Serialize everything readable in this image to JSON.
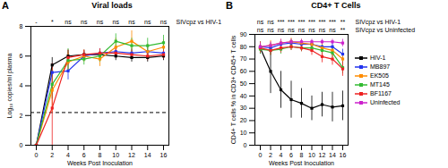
{
  "chart_data": [
    {
      "type": "line",
      "panel": "A",
      "title": "Viral loads",
      "x_label": "Weeks Post Inoculation",
      "y_label": "Log₁₀ copies/ml plasma",
      "x": [
        0,
        2,
        4,
        6,
        8,
        10,
        12,
        14,
        16
      ],
      "xlim": [
        0,
        16
      ],
      "xticks": [
        0,
        2,
        4,
        6,
        8,
        10,
        12,
        14,
        16
      ],
      "ylim": [
        0,
        8
      ],
      "yticks": [
        0,
        2,
        4,
        6,
        8
      ],
      "threshold": 2.2,
      "marker": "square",
      "significance": [
        {
          "name": "SIVcpz vs HIV-1",
          "labels": [
            "-",
            "*",
            "ns",
            "ns",
            "ns",
            "ns",
            "ns",
            "ns",
            "ns"
          ]
        }
      ],
      "series": [
        {
          "name": "HIV-1",
          "color": "#000000",
          "values": [
            0,
            5.4,
            6.0,
            6.1,
            6.1,
            6.0,
            5.9,
            5.9,
            6.0
          ],
          "errors": [
            0,
            0.5,
            0.4,
            0.3,
            0.3,
            0.3,
            0.3,
            0.3,
            0.3
          ]
        },
        {
          "name": "MB897",
          "color": "#2233ee",
          "values": [
            0,
            4.9,
            5.0,
            6.0,
            6.2,
            6.3,
            6.2,
            6.3,
            6.2
          ],
          "errors": [
            0,
            0.3,
            0.6,
            0.3,
            0.3,
            0.3,
            0.3,
            0.3,
            0.3
          ]
        },
        {
          "name": "EK505",
          "color": "#ff8c00",
          "values": [
            0,
            3.7,
            5.6,
            6.0,
            5.8,
            6.6,
            7.0,
            6.3,
            6.6
          ],
          "errors": [
            0,
            1.5,
            0.6,
            0.4,
            0.5,
            0.6,
            0.7,
            0.5,
            0.5
          ]
        },
        {
          "name": "MT145",
          "color": "#33bb33",
          "values": [
            0,
            4.1,
            5.7,
            5.8,
            6.0,
            7.0,
            6.7,
            6.7,
            6.9
          ],
          "errors": [
            0,
            1.0,
            0.8,
            0.4,
            0.4,
            0.5,
            0.5,
            0.5,
            0.5
          ]
        },
        {
          "name": "BF1167",
          "color": "#ee2222",
          "values": [
            0,
            2.5,
            5.9,
            6.1,
            6.2,
            6.2,
            6.1,
            6.0,
            6.1
          ],
          "errors": [
            0,
            3.0,
            0.5,
            0.3,
            0.3,
            0.3,
            0.3,
            0.3,
            0.3
          ]
        }
      ]
    },
    {
      "type": "line",
      "panel": "B",
      "title": "CD4+ T Cells",
      "x_label": "Weeks Post Inoculation",
      "y_label": "CD4+ T cells % in CD3+ CD45+ T cells",
      "x": [
        0,
        2,
        4,
        6,
        8,
        10,
        12,
        14,
        16
      ],
      "xlim": [
        0,
        16
      ],
      "xticks": [
        0,
        2,
        4,
        6,
        8,
        10,
        12,
        14,
        16
      ],
      "ylim": [
        0,
        90
      ],
      "yticks": [
        0,
        10,
        20,
        30,
        40,
        50,
        60,
        70,
        80,
        90
      ],
      "marker": "square",
      "legend": "right",
      "significance": [
        {
          "name": "SIVcpz vs HIV-1",
          "labels": [
            "ns",
            "ns",
            "***",
            "***",
            "***",
            "***",
            "***",
            "***",
            "**"
          ]
        },
        {
          "name": "SIVcpz vs Uninfected",
          "labels": [
            "ns",
            "ns",
            "ns",
            "ns",
            "ns",
            "ns",
            "ns",
            "ns",
            "**"
          ]
        }
      ],
      "series": [
        {
          "name": "HIV-1",
          "color": "#000000",
          "values": [
            79,
            60,
            45,
            37,
            34,
            30,
            33,
            31,
            32
          ],
          "errors": [
            5,
            18,
            15,
            15,
            12,
            10,
            10,
            12,
            12
          ]
        },
        {
          "name": "MB897",
          "color": "#2233ee",
          "values": [
            80,
            79,
            82,
            83,
            82,
            82,
            80,
            80,
            74
          ],
          "errors": [
            4,
            4,
            3,
            3,
            3,
            3,
            3,
            3,
            4
          ]
        },
        {
          "name": "EK505",
          "color": "#ff8c00",
          "values": [
            80,
            81,
            83,
            84,
            83,
            82,
            79,
            77,
            70
          ],
          "errors": [
            4,
            4,
            3,
            3,
            3,
            3,
            4,
            4,
            5
          ]
        },
        {
          "name": "MT145",
          "color": "#33bb33",
          "values": [
            78,
            77,
            78,
            80,
            79,
            79,
            77,
            75,
            63
          ],
          "errors": [
            4,
            4,
            4,
            3,
            3,
            3,
            4,
            4,
            5
          ]
        },
        {
          "name": "BF1167",
          "color": "#ee2222",
          "values": [
            79,
            77,
            79,
            80,
            79,
            77,
            72,
            70,
            62
          ],
          "errors": [
            4,
            4,
            4,
            3,
            3,
            4,
            5,
            5,
            6
          ]
        },
        {
          "name": "Uninfected",
          "color": "#cc22cc",
          "values": [
            80,
            81,
            83,
            84,
            84,
            84,
            84,
            84,
            83
          ],
          "errors": [
            3,
            3,
            3,
            2,
            2,
            2,
            2,
            2,
            3
          ]
        }
      ]
    }
  ]
}
